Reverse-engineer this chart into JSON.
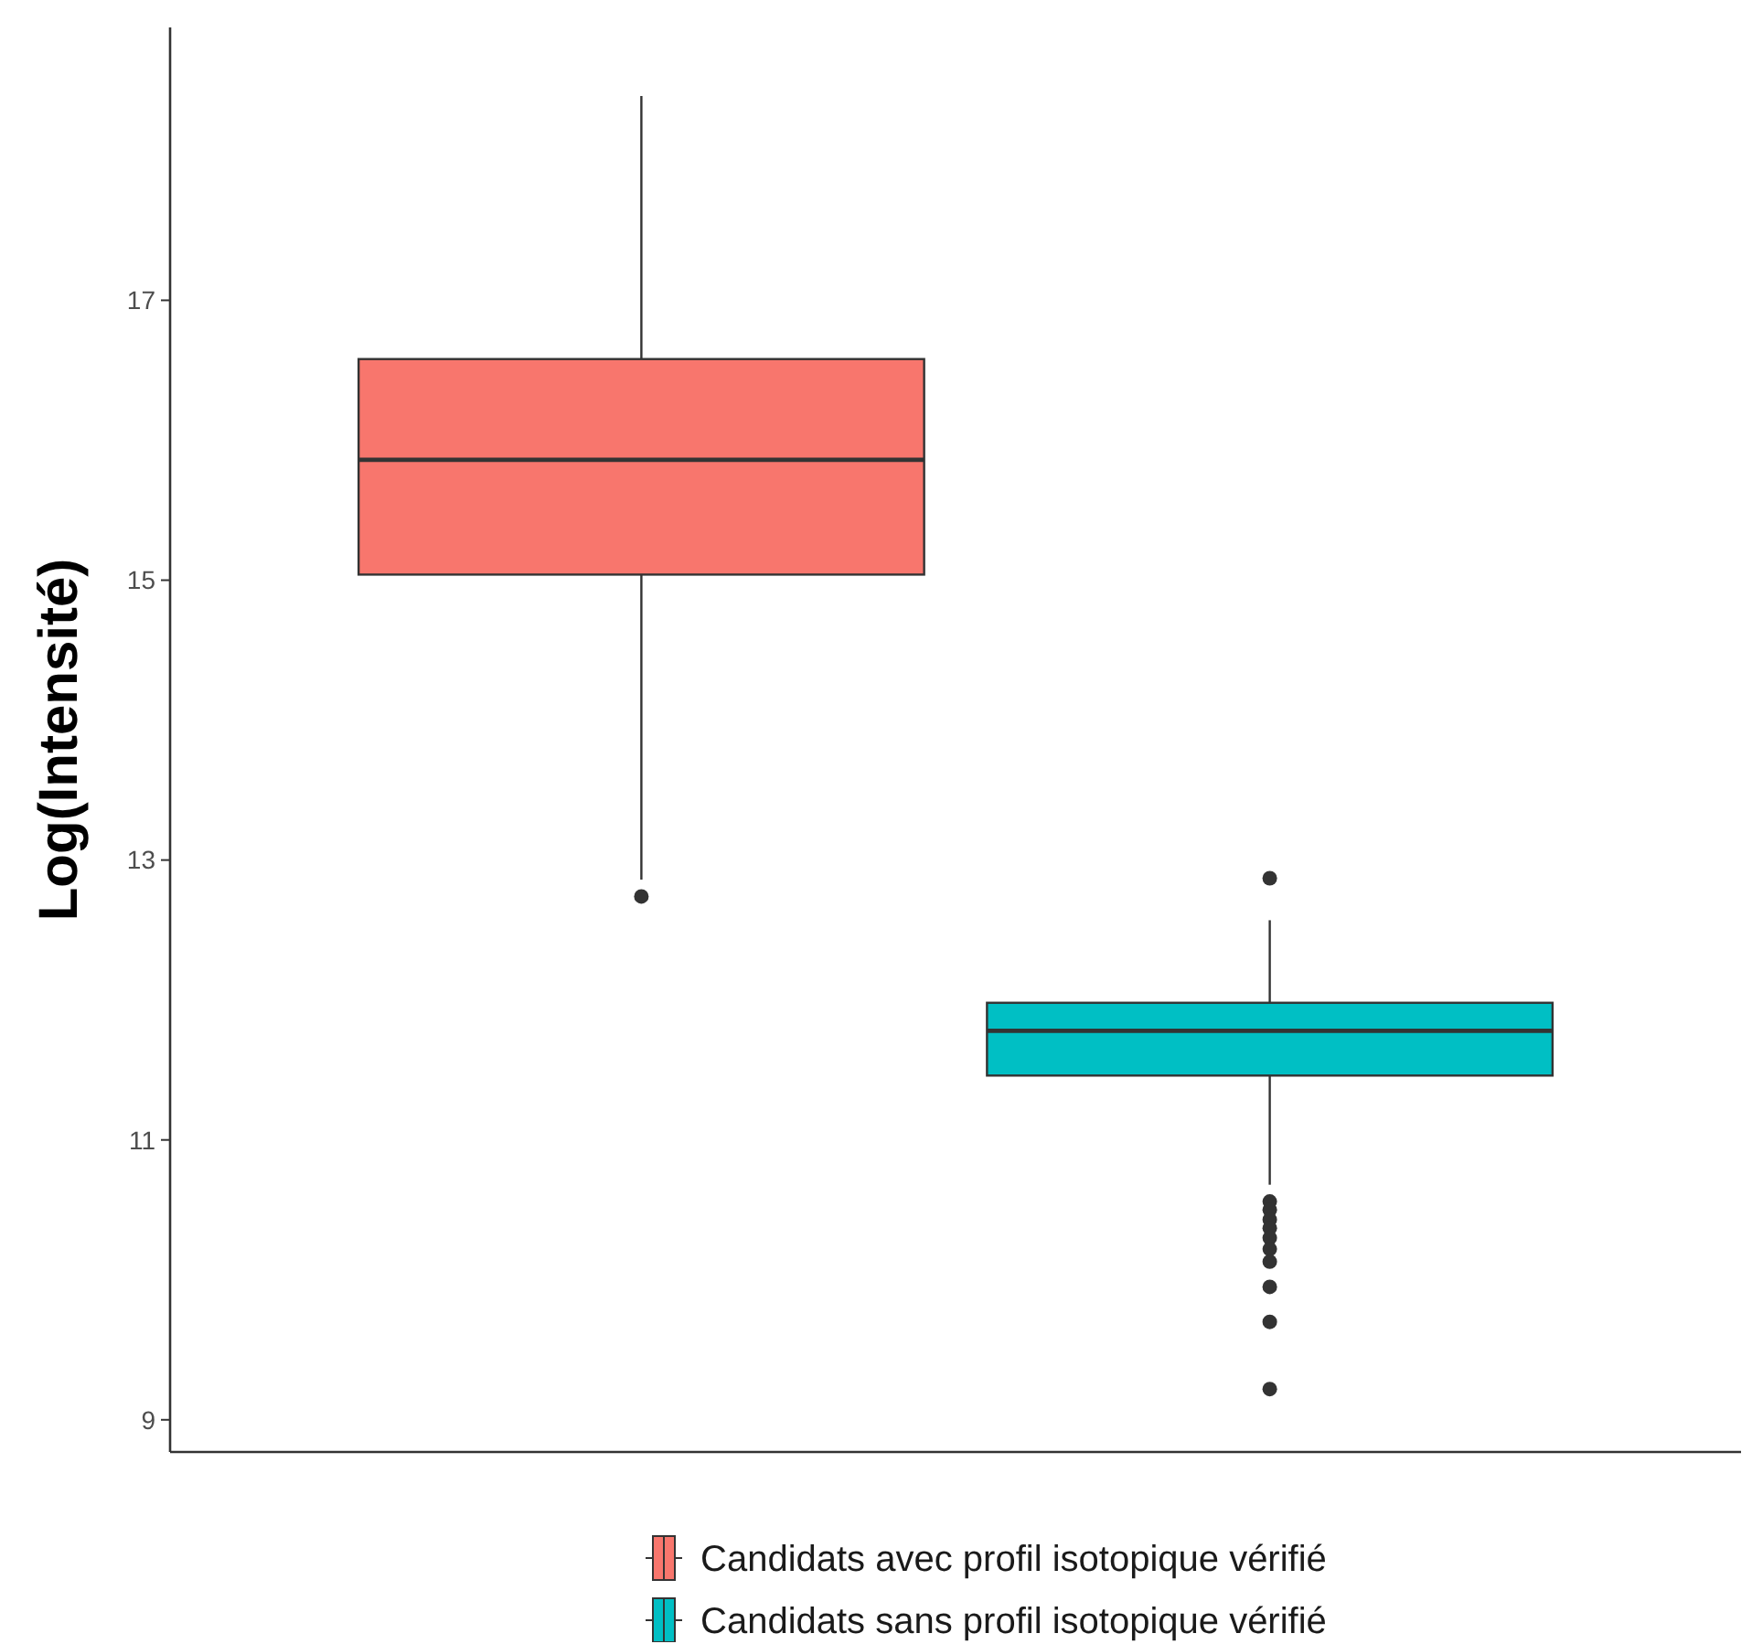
{
  "chart_data": {
    "type": "box",
    "ylabel": "Log(Intensité)",
    "categories": [
      null
    ],
    "series": [
      {
        "name": "Candidats avec profil isotopique vérifié",
        "color": "#f8766d",
        "boxes": [
          {
            "low": 12.86,
            "q1": 15.04,
            "median": 15.86,
            "q3": 16.58,
            "high": 18.46,
            "outliers": [
              12.74
            ]
          }
        ]
      },
      {
        "name": "Candidats sans profil isotopique vérifié",
        "color": "#00bfc4",
        "boxes": [
          {
            "low": 10.68,
            "q1": 11.46,
            "median": 11.78,
            "q3": 11.98,
            "high": 12.57,
            "outliers": [
              12.87,
              10.56,
              10.5,
              10.43,
              10.37,
              10.3,
              10.22,
              10.13,
              9.95,
              9.7,
              9.22
            ]
          }
        ]
      }
    ],
    "ylim": [
      8.77,
      18.95
    ],
    "yticks": [
      9,
      11,
      13,
      15,
      17
    ],
    "grid": false,
    "legend": "bottom",
    "tick_labels": "y"
  }
}
